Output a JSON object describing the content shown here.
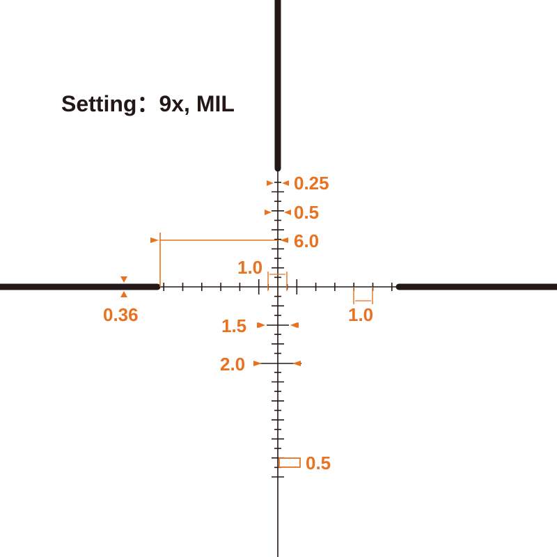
{
  "title": "Setting：9x, MIL",
  "colors": {
    "reticle": "#231815",
    "annotation": "#e8721f"
  },
  "labels": {
    "dot_025": "0.25",
    "dot_05_top": "0.5",
    "post_gap": "6.0",
    "center_1": "1.0",
    "post_thickness": "0.36",
    "right_1": "1.0",
    "hold_15": "1.5",
    "hold_20": "2.0",
    "bottom_05": "0.5"
  }
}
